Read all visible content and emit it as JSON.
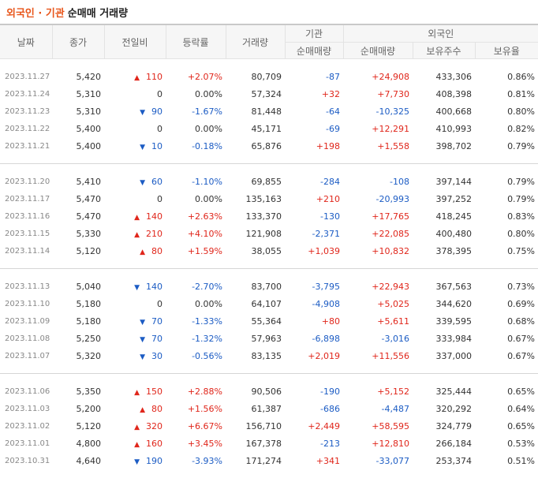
{
  "title": {
    "highlight": "외국인 · 기관",
    "rest": "순매매 거래량"
  },
  "headers": {
    "date": "날짜",
    "close": "종가",
    "change": "전일비",
    "rate": "등락률",
    "volume": "거래량",
    "inst_group": "기관",
    "foreign_group": "외국인",
    "inst_net": "순매매량",
    "foreign_net": "순매매량",
    "foreign_holdings": "보유주수",
    "foreign_ratio": "보유율"
  },
  "arrows": {
    "up": "▲",
    "down": "▼"
  },
  "groups": [
    [
      {
        "date": "2023.11.27",
        "close": "5,420",
        "dir": "up",
        "change": "110",
        "rate": "+2.07%",
        "volume": "80,709",
        "inst": "-87",
        "foreign": "+24,908",
        "holdings": "433,306",
        "ratio": "0.86%"
      },
      {
        "date": "2023.11.24",
        "close": "5,310",
        "dir": "flat",
        "change": "0",
        "rate": "0.00%",
        "volume": "57,324",
        "inst": "+32",
        "foreign": "+7,730",
        "holdings": "408,398",
        "ratio": "0.81%"
      },
      {
        "date": "2023.11.23",
        "close": "5,310",
        "dir": "down",
        "change": "90",
        "rate": "-1.67%",
        "volume": "81,448",
        "inst": "-64",
        "foreign": "-10,325",
        "holdings": "400,668",
        "ratio": "0.80%"
      },
      {
        "date": "2023.11.22",
        "close": "5,400",
        "dir": "flat",
        "change": "0",
        "rate": "0.00%",
        "volume": "45,171",
        "inst": "-69",
        "foreign": "+12,291",
        "holdings": "410,993",
        "ratio": "0.82%"
      },
      {
        "date": "2023.11.21",
        "close": "5,400",
        "dir": "down",
        "change": "10",
        "rate": "-0.18%",
        "volume": "65,876",
        "inst": "+198",
        "foreign": "+1,558",
        "holdings": "398,702",
        "ratio": "0.79%"
      }
    ],
    [
      {
        "date": "2023.11.20",
        "close": "5,410",
        "dir": "down",
        "change": "60",
        "rate": "-1.10%",
        "volume": "69,855",
        "inst": "-284",
        "foreign": "-108",
        "holdings": "397,144",
        "ratio": "0.79%"
      },
      {
        "date": "2023.11.17",
        "close": "5,470",
        "dir": "flat",
        "change": "0",
        "rate": "0.00%",
        "volume": "135,163",
        "inst": "+210",
        "foreign": "-20,993",
        "holdings": "397,252",
        "ratio": "0.79%"
      },
      {
        "date": "2023.11.16",
        "close": "5,470",
        "dir": "up",
        "change": "140",
        "rate": "+2.63%",
        "volume": "133,370",
        "inst": "-130",
        "foreign": "+17,765",
        "holdings": "418,245",
        "ratio": "0.83%"
      },
      {
        "date": "2023.11.15",
        "close": "5,330",
        "dir": "up",
        "change": "210",
        "rate": "+4.10%",
        "volume": "121,908",
        "inst": "-2,371",
        "foreign": "+22,085",
        "holdings": "400,480",
        "ratio": "0.80%"
      },
      {
        "date": "2023.11.14",
        "close": "5,120",
        "dir": "up",
        "change": "80",
        "rate": "+1.59%",
        "volume": "38,055",
        "inst": "+1,039",
        "foreign": "+10,832",
        "holdings": "378,395",
        "ratio": "0.75%"
      }
    ],
    [
      {
        "date": "2023.11.13",
        "close": "5,040",
        "dir": "down",
        "change": "140",
        "rate": "-2.70%",
        "volume": "83,700",
        "inst": "-3,795",
        "foreign": "+22,943",
        "holdings": "367,563",
        "ratio": "0.73%"
      },
      {
        "date": "2023.11.10",
        "close": "5,180",
        "dir": "flat",
        "change": "0",
        "rate": "0.00%",
        "volume": "64,107",
        "inst": "-4,908",
        "foreign": "+5,025",
        "holdings": "344,620",
        "ratio": "0.69%"
      },
      {
        "date": "2023.11.09",
        "close": "5,180",
        "dir": "down",
        "change": "70",
        "rate": "-1.33%",
        "volume": "55,364",
        "inst": "+80",
        "foreign": "+5,611",
        "holdings": "339,595",
        "ratio": "0.68%"
      },
      {
        "date": "2023.11.08",
        "close": "5,250",
        "dir": "down",
        "change": "70",
        "rate": "-1.32%",
        "volume": "57,963",
        "inst": "-6,898",
        "foreign": "-3,016",
        "holdings": "333,984",
        "ratio": "0.67%"
      },
      {
        "date": "2023.11.07",
        "close": "5,320",
        "dir": "down",
        "change": "30",
        "rate": "-0.56%",
        "volume": "83,135",
        "inst": "+2,019",
        "foreign": "+11,556",
        "holdings": "337,000",
        "ratio": "0.67%"
      }
    ],
    [
      {
        "date": "2023.11.06",
        "close": "5,350",
        "dir": "up",
        "change": "150",
        "rate": "+2.88%",
        "volume": "90,506",
        "inst": "-190",
        "foreign": "+5,152",
        "holdings": "325,444",
        "ratio": "0.65%"
      },
      {
        "date": "2023.11.03",
        "close": "5,200",
        "dir": "up",
        "change": "80",
        "rate": "+1.56%",
        "volume": "61,387",
        "inst": "-686",
        "foreign": "-4,487",
        "holdings": "320,292",
        "ratio": "0.64%"
      },
      {
        "date": "2023.11.02",
        "close": "5,120",
        "dir": "up",
        "change": "320",
        "rate": "+6.67%",
        "volume": "156,710",
        "inst": "+2,449",
        "foreign": "+58,595",
        "holdings": "324,779",
        "ratio": "0.65%"
      },
      {
        "date": "2023.11.01",
        "close": "4,800",
        "dir": "up",
        "change": "160",
        "rate": "+3.45%",
        "volume": "167,378",
        "inst": "-213",
        "foreign": "+12,810",
        "holdings": "266,184",
        "ratio": "0.53%"
      },
      {
        "date": "2023.10.31",
        "close": "4,640",
        "dir": "down",
        "change": "190",
        "rate": "-3.93%",
        "volume": "171,274",
        "inst": "+341",
        "foreign": "-33,077",
        "holdings": "253,374",
        "ratio": "0.51%"
      }
    ]
  ],
  "colors": {
    "up": "#e0261b",
    "down": "#1c5cc4",
    "title_accent": "#e8561b"
  }
}
